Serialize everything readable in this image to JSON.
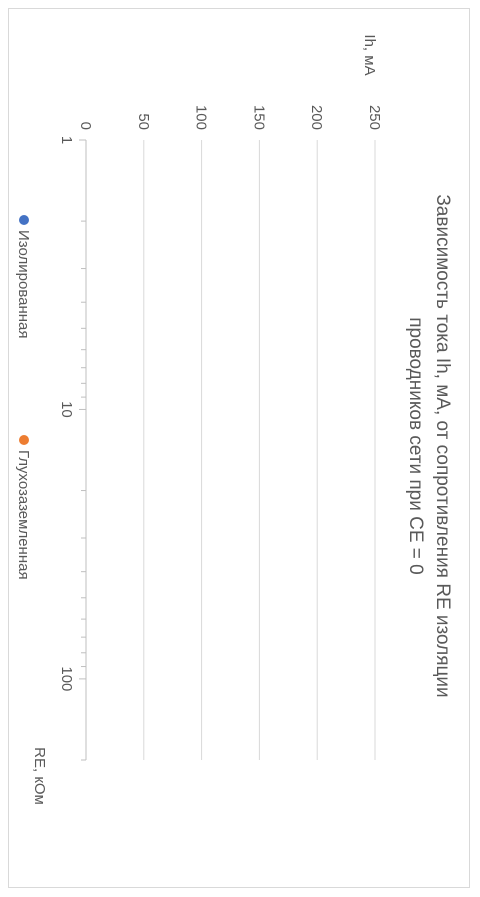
{
  "chart_data": {
    "type": "scatter",
    "title_line1": "Зависимость тока Ih, мА, от сопротивления RE изоляции",
    "title_line2": "проводников сети при CE = 0",
    "xlabel": "RE, кОм",
    "ylabel": "Ih, мА",
    "x_scale": "log",
    "xlim": [
      1,
      200
    ],
    "ylim": [
      0,
      250
    ],
    "x_ticks": [
      1,
      10,
      100
    ],
    "y_ticks": [
      0,
      50,
      100,
      150,
      200,
      250
    ],
    "x_tick_labels": [
      "1",
      "10",
      "100"
    ],
    "y_tick_labels": [
      "0",
      "50",
      "100",
      "150",
      "200",
      "250"
    ],
    "grid": true,
    "series": [
      {
        "name": "Изолированная",
        "color": "#4472C4",
        "points": []
      },
      {
        "name": "Глухозаземленная",
        "color": "#ED7D31",
        "points": []
      }
    ],
    "legend_position": "bottom"
  }
}
